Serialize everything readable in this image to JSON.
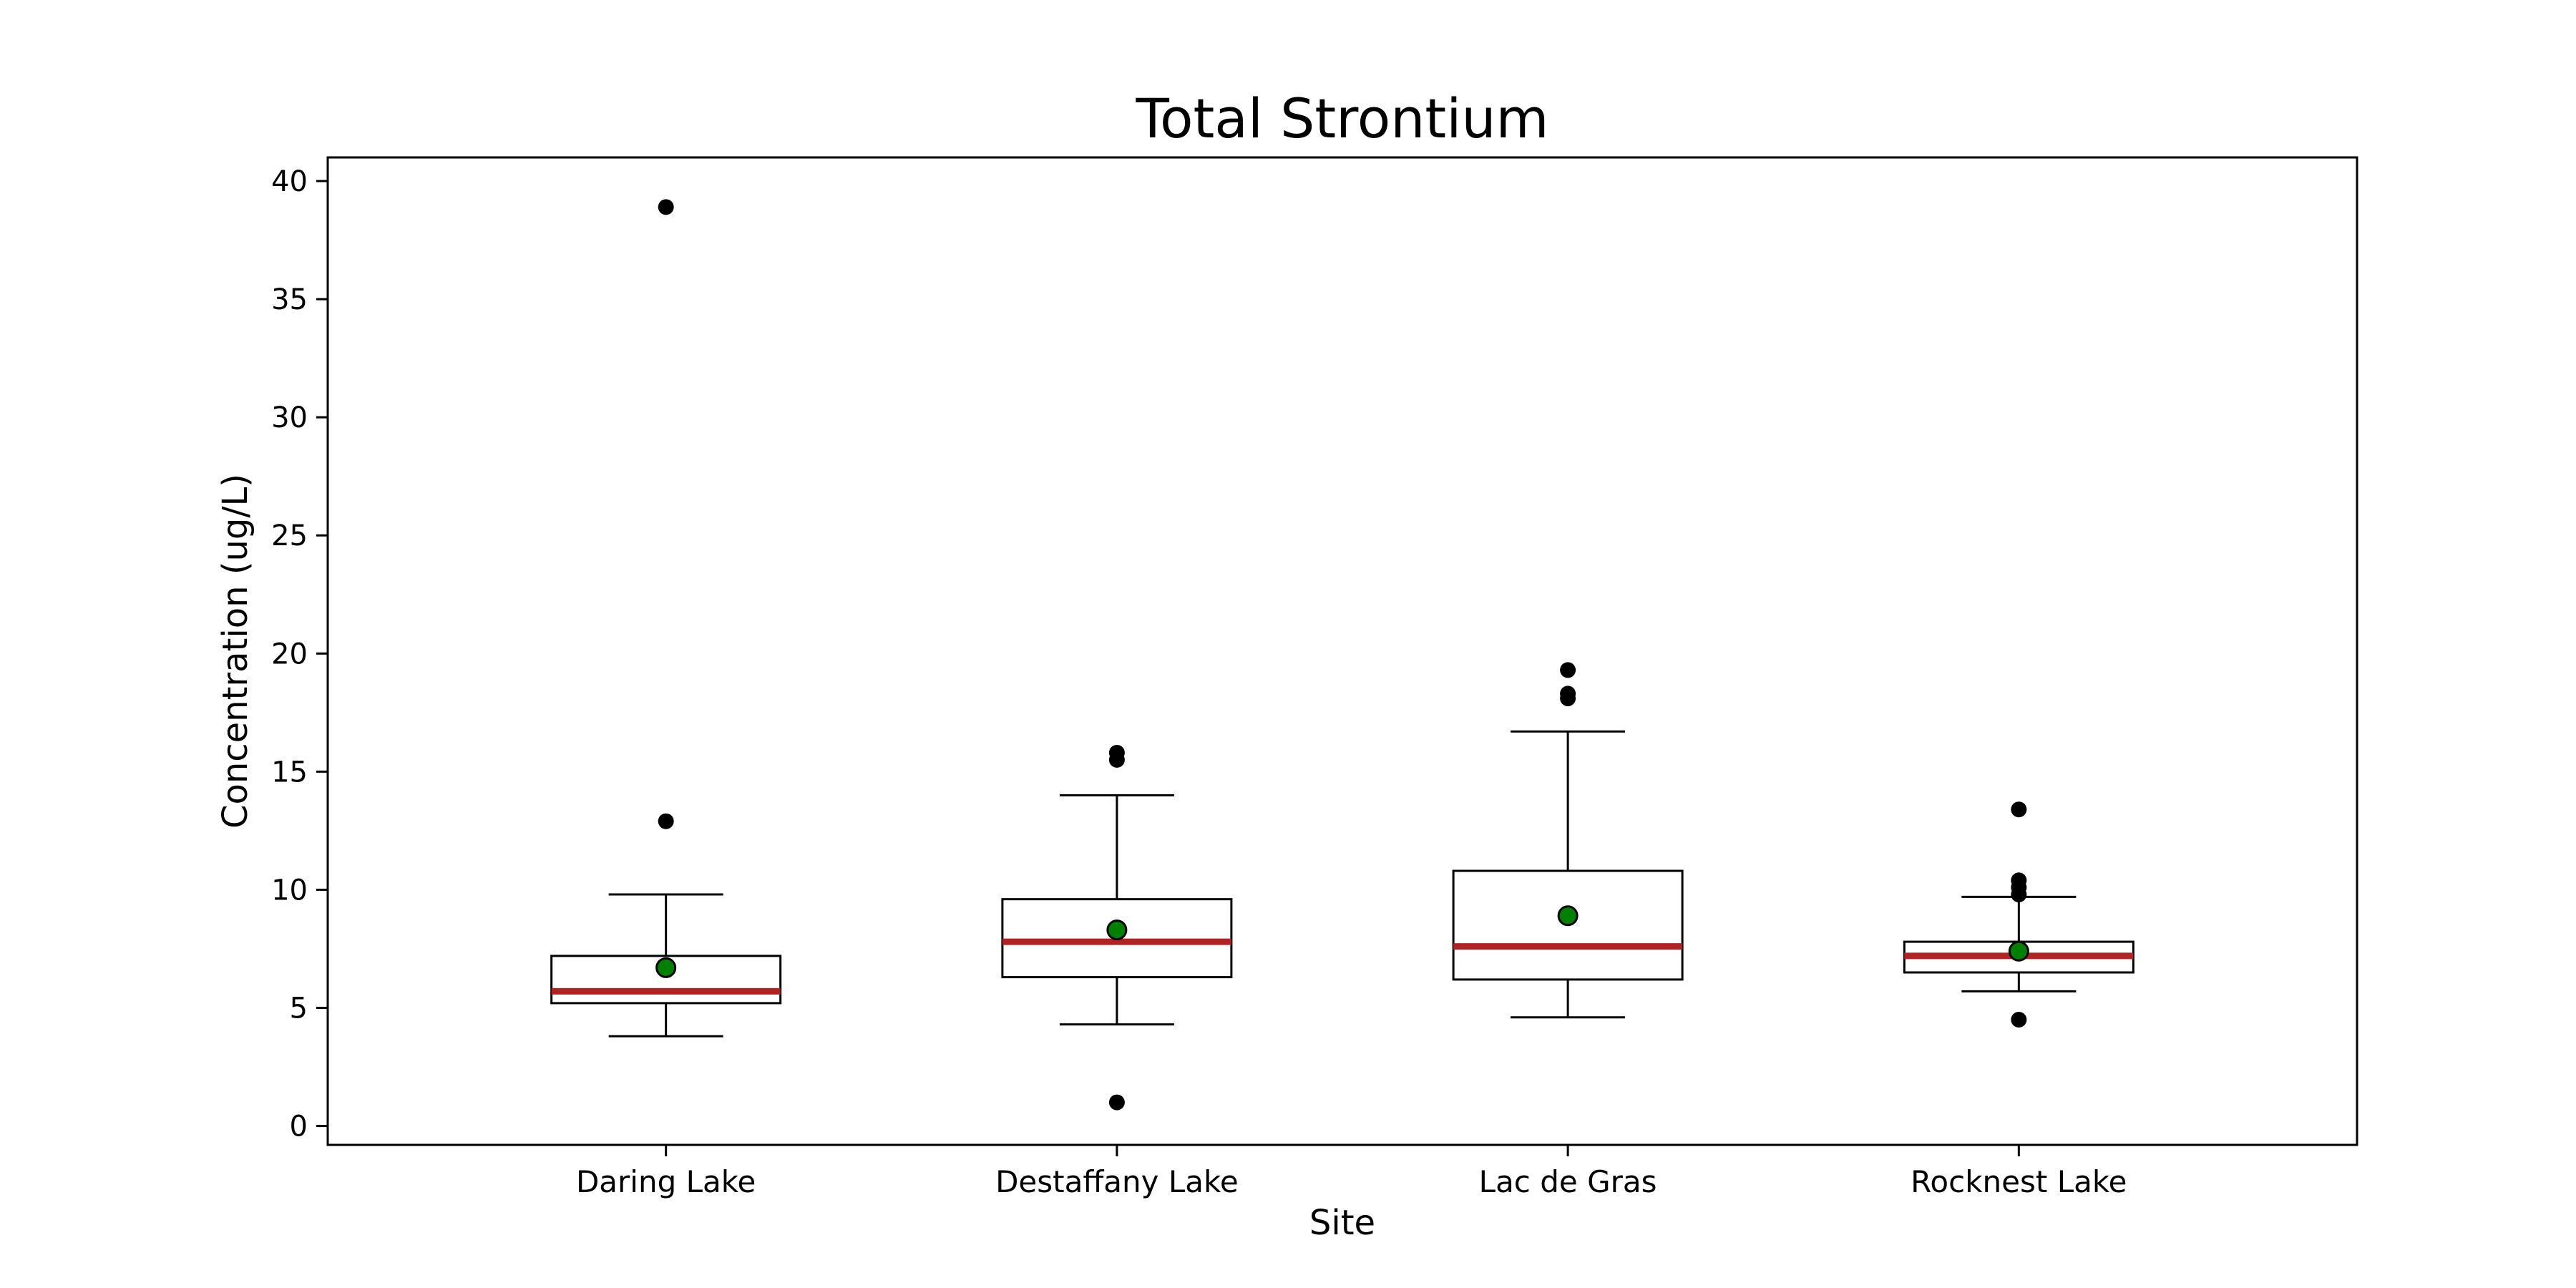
{
  "chart_data": {
    "type": "box",
    "title": "Total Strontium",
    "xlabel": "Site",
    "ylabel": "Concentration (ug/L)",
    "ylim": [
      -0.8,
      41.0
    ],
    "yticks": [
      0,
      5,
      10,
      15,
      20,
      25,
      30,
      35,
      40
    ],
    "grid": false,
    "categories": [
      "Daring Lake",
      "Destaffany Lake",
      "Lac de Gras",
      "Rocknest Lake"
    ],
    "boxes": [
      {
        "site": "Daring Lake",
        "whisker_low": 3.8,
        "q1": 5.2,
        "median": 5.7,
        "q3": 7.2,
        "whisker_high": 9.8,
        "mean": 6.7,
        "outliers": [
          12.9,
          38.9
        ]
      },
      {
        "site": "Destaffany Lake",
        "whisker_low": 4.3,
        "q1": 6.3,
        "median": 7.8,
        "q3": 9.6,
        "whisker_high": 14.0,
        "mean": 8.3,
        "outliers": [
          1.0,
          15.5,
          15.8
        ]
      },
      {
        "site": "Lac de Gras",
        "whisker_low": 4.6,
        "q1": 6.2,
        "median": 7.6,
        "q3": 10.8,
        "whisker_high": 16.7,
        "mean": 8.9,
        "outliers": [
          18.1,
          18.3,
          19.3
        ]
      },
      {
        "site": "Rocknest Lake",
        "whisker_low": 5.7,
        "q1": 6.5,
        "median": 7.2,
        "q3": 7.8,
        "whisker_high": 9.7,
        "mean": 7.4,
        "outliers": [
          4.5,
          9.8,
          10.1,
          10.4,
          13.4
        ]
      }
    ],
    "colors": {
      "median": "#b22222",
      "mean": "#008000",
      "outlier": "#000000",
      "box": "#000000"
    }
  }
}
